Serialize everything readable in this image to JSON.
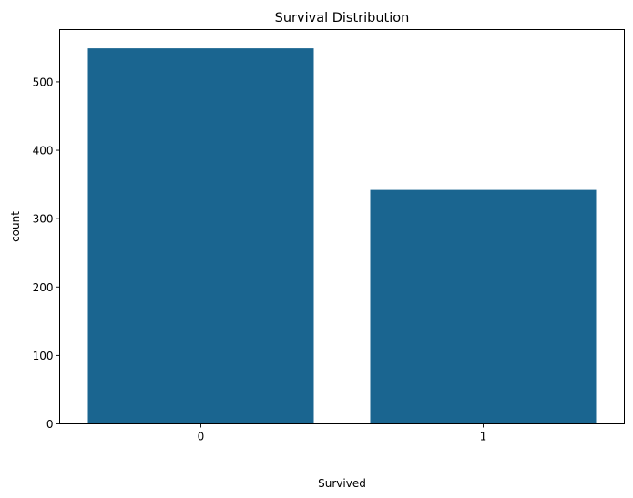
{
  "chart_data": {
    "type": "bar",
    "title": "Survival Distribution",
    "xlabel": "Survived",
    "ylabel": "count",
    "categories": [
      "0",
      "1"
    ],
    "values": [
      549,
      342
    ],
    "ylim": [
      0,
      576.45
    ],
    "yticks": [
      0,
      100,
      200,
      300,
      400,
      500
    ],
    "ytick_labels": [
      "0",
      "100",
      "200",
      "300",
      "400",
      "500"
    ],
    "bar_color": "#1a6590",
    "grid": false,
    "legend": "none"
  }
}
